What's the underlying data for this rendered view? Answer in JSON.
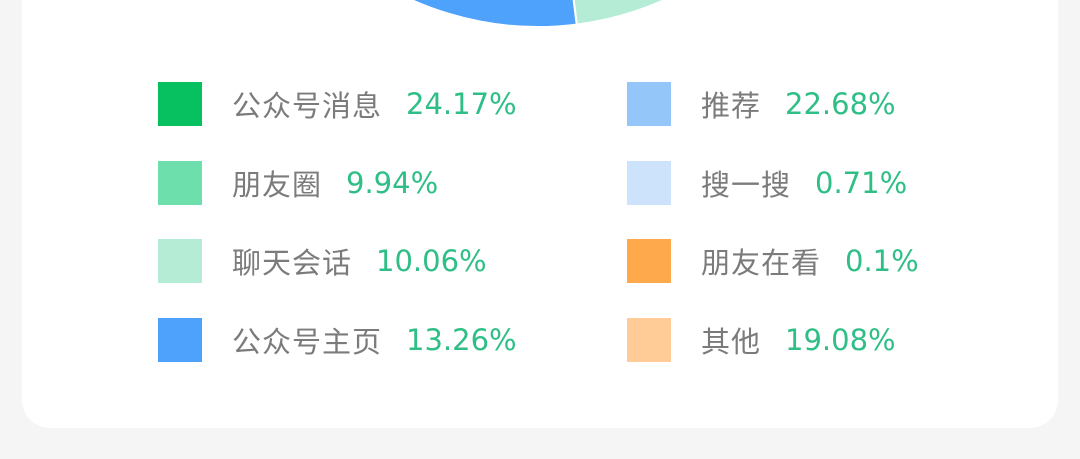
{
  "chart_data": {
    "type": "pie",
    "title": "",
    "legend_position": "bottom",
    "slices": [
      {
        "name": "公众号消息",
        "value": 24.17,
        "value_label": "24.17%",
        "color": "#07c160"
      },
      {
        "name": "朋友圈",
        "value": 9.94,
        "value_label": "9.94%",
        "color": "#6ddfad"
      },
      {
        "name": "聊天会话",
        "value": 10.06,
        "value_label": "10.06%",
        "color": "#b4ecd5"
      },
      {
        "name": "公众号主页",
        "value": 13.26,
        "value_label": "13.26%",
        "color": "#4ea2fb"
      },
      {
        "name": "推荐",
        "value": 22.68,
        "value_label": "22.68%",
        "color": "#94c6fa"
      },
      {
        "name": "搜一搜",
        "value": 0.71,
        "value_label": "0.71%",
        "color": "#cce3fb"
      },
      {
        "name": "朋友在看",
        "value": 0.1,
        "value_label": "0.1%",
        "color": "#ffa94d"
      },
      {
        "name": "其他",
        "value": 19.08,
        "value_label": "19.08%",
        "color": "#ffcb96"
      }
    ]
  }
}
